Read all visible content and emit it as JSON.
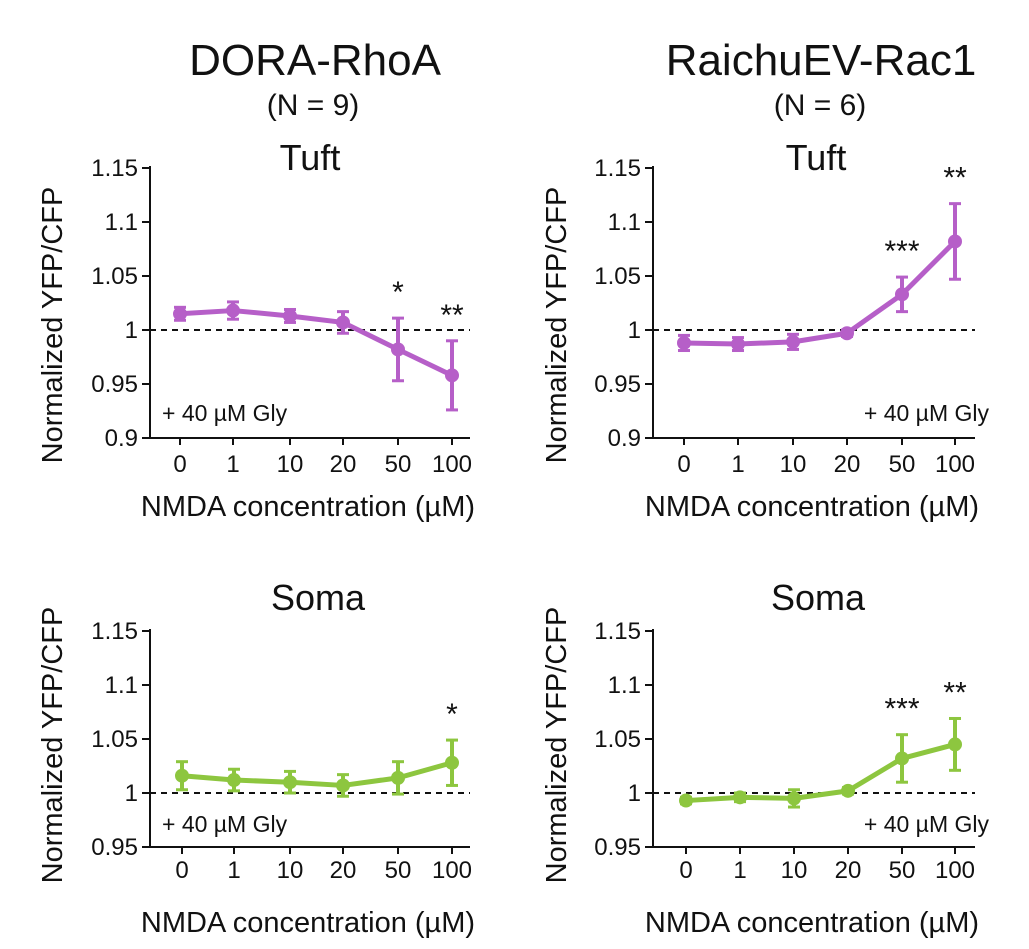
{
  "column_titles": [
    {
      "name": "DORA-RhoA",
      "n": "(N = 9)"
    },
    {
      "name": "RaichuEV-Rac1",
      "n": "(N = 6)"
    }
  ],
  "colors": {
    "tuft": "#B65FC8",
    "soma": "#8DC63F",
    "axis": "#111111"
  },
  "chart_data": [
    {
      "type": "line",
      "title": "Tuft",
      "sensor": "DORA-RhoA",
      "xlabel": "NMDA concentration (µM)",
      "ylabel": "Normalized YFP/CFP",
      "categories": [
        "0",
        "1",
        "10",
        "20",
        "50",
        "100"
      ],
      "values": [
        1.015,
        1.018,
        1.013,
        1.007,
        0.982,
        0.958
      ],
      "errors": [
        0.006,
        0.008,
        0.006,
        0.01,
        0.029,
        0.032
      ],
      "significance": [
        "",
        "",
        "",
        "",
        "*",
        "**"
      ],
      "yticks": [
        "1.15",
        "1.1",
        "1.05",
        "1",
        "0.95",
        "0.9"
      ],
      "ylim": [
        0.9,
        1.15
      ],
      "baseline": 1,
      "annotation": "+ 40 µM Gly",
      "annotation_position": "bottom-left",
      "color": "#B65FC8"
    },
    {
      "type": "line",
      "title": "Tuft",
      "sensor": "RaichuEV-Rac1",
      "xlabel": "NMDA concentration (µM)",
      "ylabel": "Normalized YFP/CFP",
      "categories": [
        "0",
        "1",
        "10",
        "20",
        "50",
        "100"
      ],
      "values": [
        0.988,
        0.987,
        0.989,
        0.997,
        1.033,
        1.082
      ],
      "errors": [
        0.007,
        0.006,
        0.007,
        0.003,
        0.016,
        0.035
      ],
      "significance": [
        "",
        "",
        "",
        "",
        "***",
        "**"
      ],
      "yticks": [
        "1.15",
        "1.1",
        "1.05",
        "1",
        "0.95",
        "0.9"
      ],
      "ylim": [
        0.9,
        1.15
      ],
      "baseline": 1,
      "annotation": "+ 40 µM Gly",
      "annotation_position": "bottom-right",
      "color": "#B65FC8"
    },
    {
      "type": "line",
      "title": "Soma",
      "sensor": "DORA-RhoA",
      "xlabel": "NMDA concentration (µM)",
      "ylabel": "Normalized YFP/CFP",
      "categories": [
        "0",
        "1",
        "10",
        "20",
        "50",
        "100"
      ],
      "values": [
        1.016,
        1.012,
        1.01,
        1.007,
        1.014,
        1.028
      ],
      "errors": [
        0.013,
        0.01,
        0.01,
        0.01,
        0.015,
        0.021
      ],
      "significance": [
        "",
        "",
        "",
        "",
        "",
        "*"
      ],
      "yticks": [
        "1.15",
        "1.1",
        "1.05",
        "1",
        "0.95"
      ],
      "ylim": [
        0.95,
        1.15
      ],
      "baseline": 1,
      "annotation": "+ 40 µM Gly",
      "annotation_position": "bottom-left",
      "color": "#8DC63F"
    },
    {
      "type": "line",
      "title": "Soma",
      "sensor": "RaichuEV-Rac1",
      "xlabel": "NMDA concentration (µM)",
      "ylabel": "Normalized YFP/CFP",
      "categories": [
        "0",
        "1",
        "10",
        "20",
        "50",
        "100"
      ],
      "values": [
        0.993,
        0.996,
        0.995,
        1.002,
        1.032,
        1.045
      ],
      "errors": [
        0.003,
        0.004,
        0.008,
        0.003,
        0.022,
        0.024
      ],
      "significance": [
        "",
        "",
        "",
        "",
        "***",
        "**"
      ],
      "yticks": [
        "1.15",
        "1.1",
        "1.05",
        "1",
        "0.95"
      ],
      "ylim": [
        0.95,
        1.15
      ],
      "baseline": 1,
      "annotation": "+ 40 µM Gly",
      "annotation_position": "bottom-right",
      "color": "#8DC63F"
    }
  ]
}
